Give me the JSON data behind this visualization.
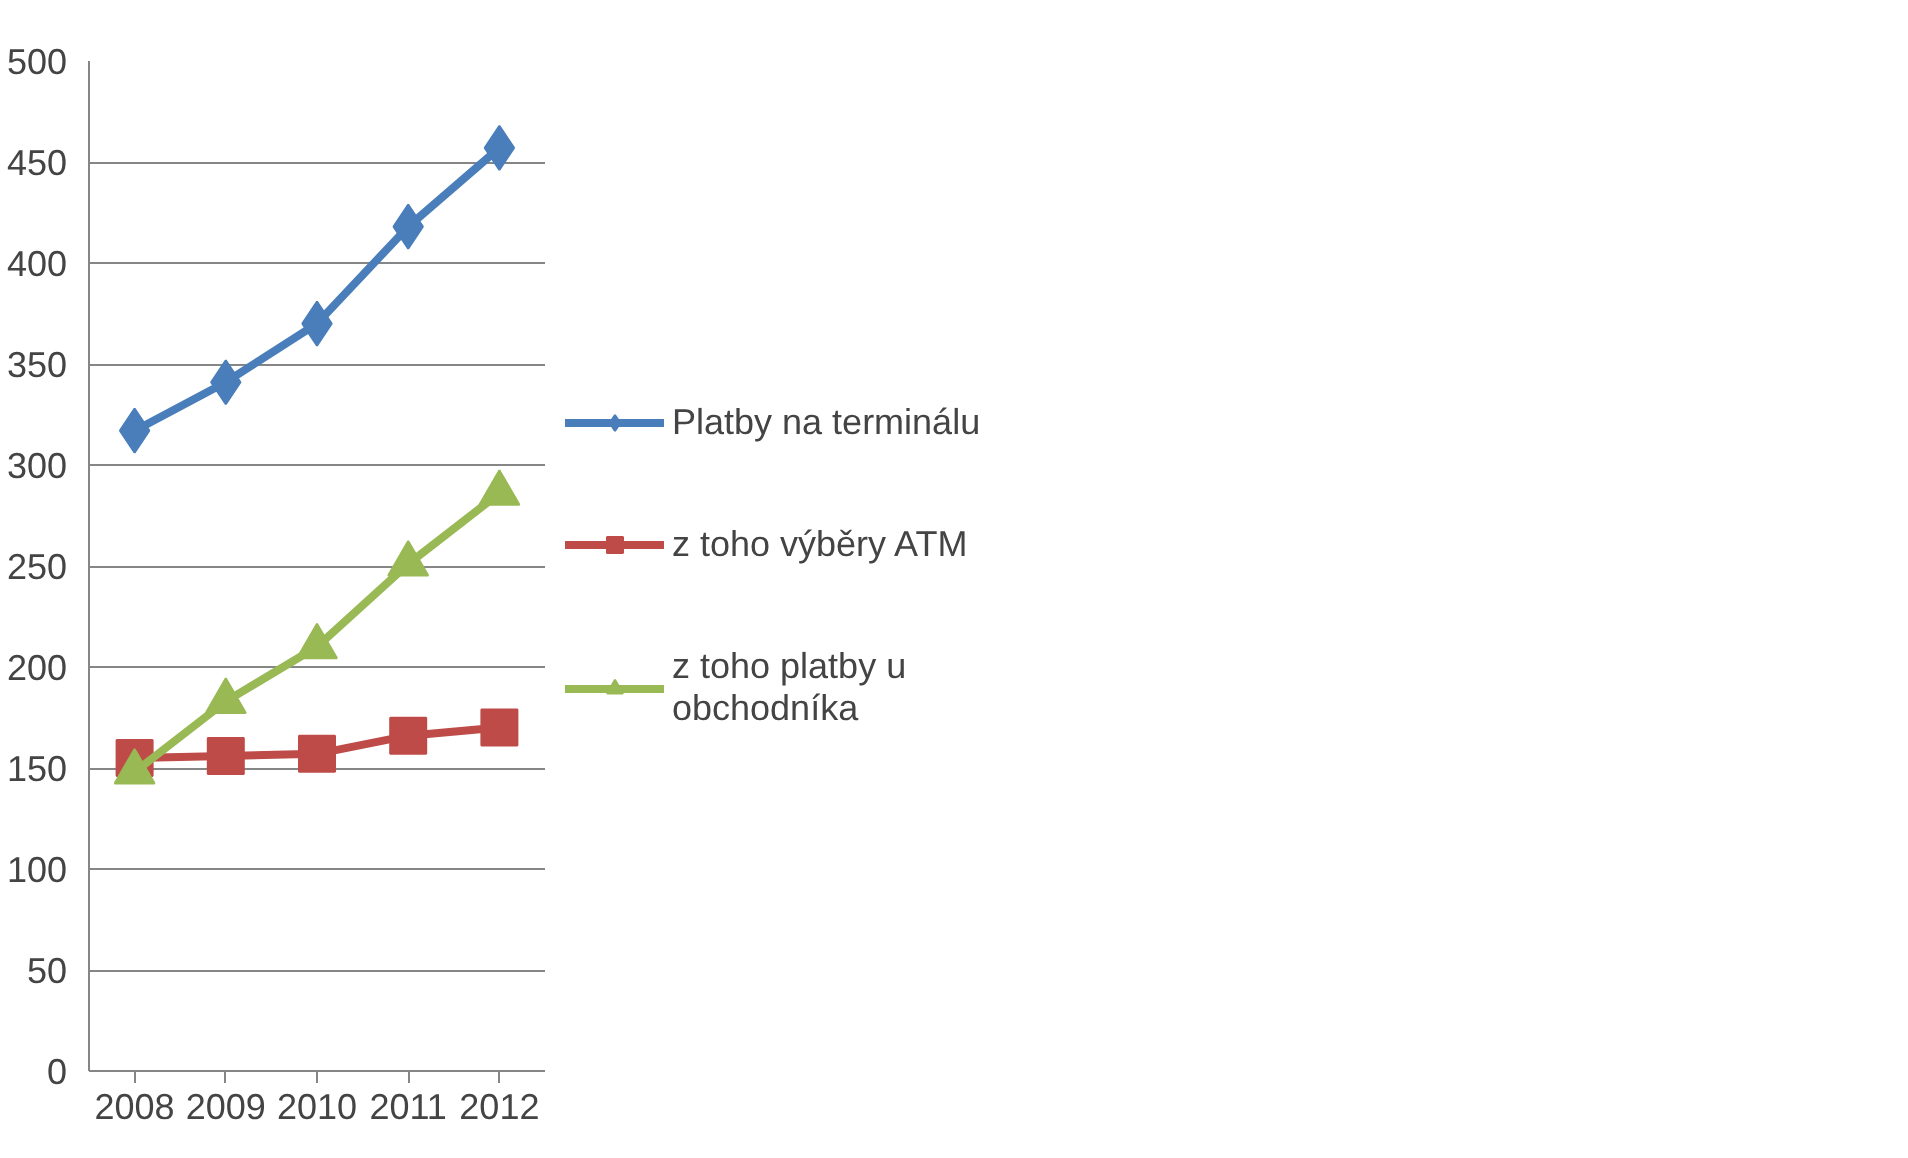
{
  "chart_data": {
    "type": "line",
    "categories": [
      "2008",
      "2009",
      "2010",
      "2011",
      "2012"
    ],
    "series": [
      {
        "name": "Platby na terminálu",
        "color": "#4a7ebb",
        "marker": "diamond",
        "values": [
          317,
          341,
          370,
          418,
          457
        ]
      },
      {
        "name": "z toho výběry ATM",
        "color": "#be4b48",
        "marker": "square",
        "values": [
          155,
          156,
          157,
          166,
          170
        ]
      },
      {
        "name": "z toho platby u obchodníka",
        "color": "#98b954",
        "marker": "triangle",
        "values": [
          148,
          183,
          210,
          251,
          286
        ]
      }
    ],
    "ylim": [
      0,
      500
    ],
    "yticks": [
      0,
      50,
      100,
      150,
      200,
      250,
      300,
      350,
      400,
      450,
      500
    ],
    "grid": "y",
    "legend": "right",
    "line_style": "solid"
  }
}
